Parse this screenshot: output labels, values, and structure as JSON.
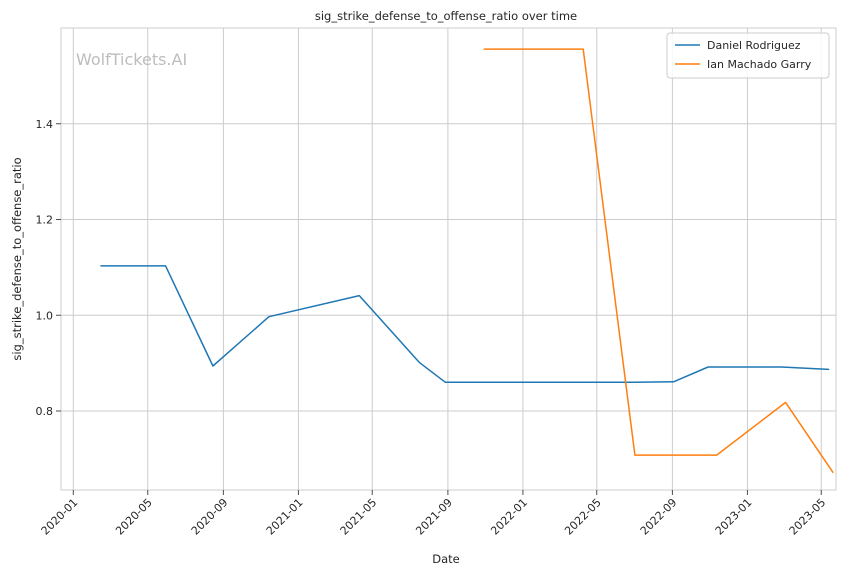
{
  "chart_data": {
    "type": "line",
    "title": "sig_strike_defense_to_offense_ratio over time",
    "xlabel": "Date",
    "ylabel": "sig_strike_defense_to_offense_ratio",
    "watermark": "WolfTickets.AI",
    "legend_position": "top-right",
    "grid": true,
    "xlim": [
      "2019-12-12",
      "2023-05-25"
    ],
    "ylim": [
      0.635,
      1.6
    ],
    "x_ticks": [
      "2020-01",
      "2020-05",
      "2020-09",
      "2021-01",
      "2021-05",
      "2021-09",
      "2022-01",
      "2022-05",
      "2022-09",
      "2023-01",
      "2023-05"
    ],
    "y_ticks": [
      0.8,
      1.0,
      1.2,
      1.4
    ],
    "series": [
      {
        "name": "Daniel Rodriguez",
        "color": "#1f77b4",
        "points": [
          {
            "x": "2020-02-15",
            "y": 1.103
          },
          {
            "x": "2020-05-30",
            "y": 1.103
          },
          {
            "x": "2020-08-15",
            "y": 0.894
          },
          {
            "x": "2020-11-14",
            "y": 0.997
          },
          {
            "x": "2021-04-10",
            "y": 1.041
          },
          {
            "x": "2021-07-17",
            "y": 0.901
          },
          {
            "x": "2021-08-28",
            "y": 0.86
          },
          {
            "x": "2022-06-25",
            "y": 0.86
          },
          {
            "x": "2022-09-03",
            "y": 0.861
          },
          {
            "x": "2022-10-29",
            "y": 0.892
          },
          {
            "x": "2023-02-25",
            "y": 0.892
          },
          {
            "x": "2023-05-13",
            "y": 0.887
          }
        ]
      },
      {
        "name": "Ian Machado Garry",
        "color": "#ff7f0e",
        "points": [
          {
            "x": "2021-10-30",
            "y": 1.556
          },
          {
            "x": "2022-04-09",
            "y": 1.556
          },
          {
            "x": "2022-07-02",
            "y": 0.708
          },
          {
            "x": "2022-11-12",
            "y": 0.708
          },
          {
            "x": "2023-03-04",
            "y": 0.818
          },
          {
            "x": "2023-05-20",
            "y": 0.672
          }
        ]
      }
    ]
  }
}
